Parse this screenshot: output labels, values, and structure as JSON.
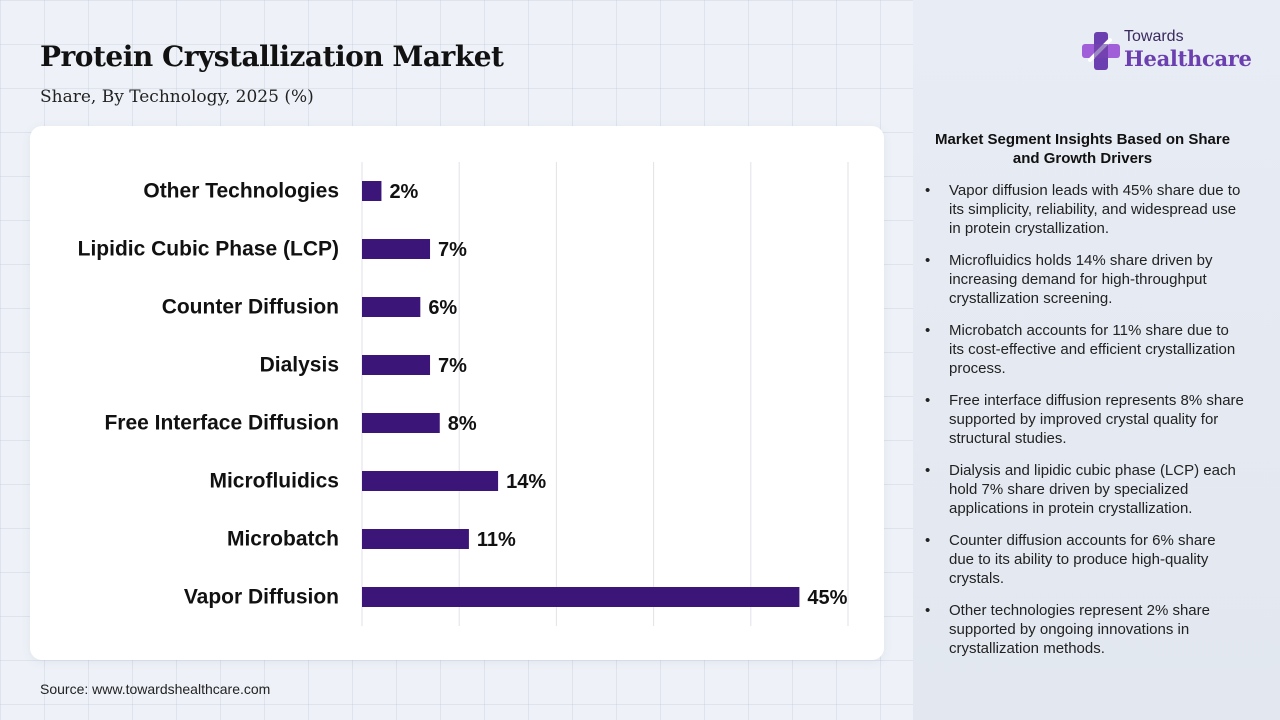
{
  "header": {
    "title": "Protein Crystallization Market",
    "subtitle": "Share, By Technology, 2025 (%)"
  },
  "brand": {
    "name_top": "Towards",
    "name_bottom": "Healthcare",
    "colors": {
      "primary": "#6b3fb0",
      "accent": "#a05fd8",
      "dark": "#3a2a5e"
    }
  },
  "chart_data": {
    "type": "bar",
    "orientation": "horizontal",
    "title": "Protein Crystallization Market",
    "subtitle": "Share, By Technology, 2025 (%)",
    "categories": [
      "Other Technologies",
      "Lipidic Cubic Phase (LCP)",
      "Counter Diffusion",
      "Dialysis",
      "Free Interface Diffusion",
      "Microfluidics",
      "Microbatch",
      "Vapor Diffusion"
    ],
    "values": [
      2,
      7,
      6,
      7,
      8,
      14,
      11,
      45
    ],
    "value_labels": [
      "2%",
      "7%",
      "6%",
      "7%",
      "8%",
      "14%",
      "11%",
      "45%"
    ],
    "xlim": [
      0,
      50
    ],
    "grid": true,
    "bar_color": "#3b1578",
    "legend": "none"
  },
  "insights": {
    "title": "Market Segment Insights Based on Share and Growth Drivers",
    "items": [
      "Vapor diffusion leads with 45% share due to its simplicity, reliability, and widespread use in protein crystallization.",
      "Microfluidics holds 14% share driven by increasing demand for high-throughput crystallization screening.",
      "Microbatch accounts for 11% share due to its cost-effective and efficient crystallization process.",
      "Free interface diffusion represents 8% share supported by improved crystal quality for structural studies.",
      "Dialysis and lipidic cubic phase (LCP) each hold 7% share driven by specialized applications in protein crystallization.",
      "Counter diffusion accounts for 6% share due to its ability to produce high-quality crystals.",
      "Other technologies represent 2% share supported by ongoing innovations in crystallization methods."
    ]
  },
  "footer": {
    "source": "Source: www.towardshealthcare.com"
  }
}
